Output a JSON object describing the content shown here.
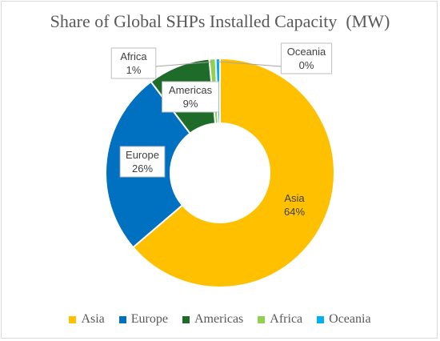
{
  "chart_data": {
    "type": "pie",
    "title": "Share of Global SHPs Installed Capacity  (MW)",
    "categories": [
      "Asia",
      "Europe",
      "Americas",
      "Africa",
      "Oceania"
    ],
    "values": [
      64,
      26,
      9,
      1,
      0
    ],
    "data_labels": [
      {
        "name": "Asia",
        "value": "64%"
      },
      {
        "name": "Europe",
        "value": "26%"
      },
      {
        "name": "Americas",
        "value": "9%"
      },
      {
        "name": "Africa",
        "value": "1%"
      },
      {
        "name": "Oceania",
        "value": "0%"
      }
    ],
    "colors": [
      "#FFC000",
      "#0070C0",
      "#1E6B2A",
      "#92D050",
      "#00B0F0"
    ],
    "legend_position": "bottom",
    "donut": true
  }
}
